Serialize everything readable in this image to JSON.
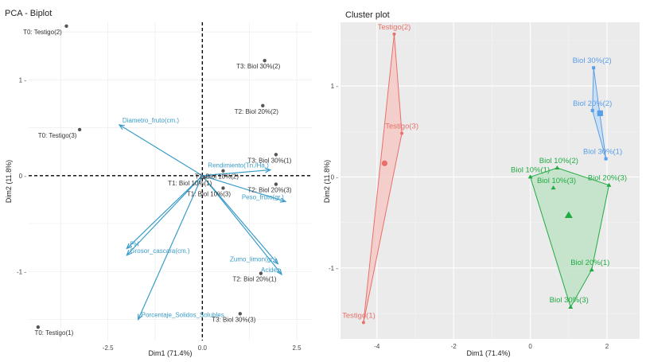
{
  "chart_data": [
    {
      "type": "scatter",
      "title": "PCA - Biplot",
      "xlabel": "Dim1 (71.4%)",
      "ylabel": "Dim2 (11.8%)",
      "xlim": [
        -4.6,
        2.9
      ],
      "ylim": [
        -1.72,
        1.6
      ],
      "x_ticks": [
        -2.5,
        0.0,
        2.5
      ],
      "x_tick_labels": [
        "-2.5",
        "0.0",
        "2.5"
      ],
      "y_ticks": [
        1,
        0,
        -1
      ],
      "y_tick_labels": [
        "1 -",
        "0 -",
        "-1 -"
      ],
      "grid": true,
      "points": [
        {
          "label": "T0: Testigo(2)",
          "x": -3.6,
          "y": 1.56
        },
        {
          "label": "T3: Biol 30%(2)",
          "x": 1.65,
          "y": 1.2
        },
        {
          "label": "T2: Biol 20%(2)",
          "x": 1.6,
          "y": 0.73
        },
        {
          "label": "T0: Testigo(3)",
          "x": -3.25,
          "y": 0.48
        },
        {
          "label": "T3: Biol 30%(1)",
          "x": 1.95,
          "y": 0.22
        },
        {
          "label": "T1: Biol 10%(2)",
          "x": 0.55,
          "y": 0.05
        },
        {
          "label": "T1: Biol 10%(1)",
          "x": 0.05,
          "y": -0.02
        },
        {
          "label": "T1: Biol 10%(3)",
          "x": 0.55,
          "y": -0.13
        },
        {
          "label": "T2: Biol 20%(3)",
          "x": 1.95,
          "y": -0.09
        },
        {
          "label": "T2: Biol 20%(1)",
          "x": 1.55,
          "y": -1.02
        },
        {
          "label": "T3: Biol 30%(3)",
          "x": 1.0,
          "y": -1.44
        },
        {
          "label": "T0: Testigo(1)",
          "x": -4.35,
          "y": -1.58
        }
      ],
      "variables": [
        {
          "label": "Diametro_fruto(cm.)",
          "x": -2.2,
          "y": 0.53
        },
        {
          "label": "Rendimiento(Tn./Ha.)",
          "x": 1.8,
          "y": 0.06
        },
        {
          "label": "Peso_fruto(gr.)",
          "x": 2.2,
          "y": -0.27
        },
        {
          "label": "PH",
          "x": -2.0,
          "y": -0.76
        },
        {
          "label": "Grosor_cascara(cm.)",
          "x": -2.0,
          "y": -0.83
        },
        {
          "label": "Zumo_limon(gr.)",
          "x": 2.0,
          "y": -0.92
        },
        {
          "label": "Acidez",
          "x": 2.1,
          "y": -1.03
        },
        {
          "label": "Porcentaje_Solidos_Solubles",
          "x": -1.7,
          "y": -1.5
        }
      ]
    },
    {
      "type": "scatter",
      "title": "Cluster plot",
      "xlabel": "Dim1 (71.4%)",
      "ylabel": "Dim2 (11.8%)",
      "xlim": [
        -4.95,
        2.85
      ],
      "ylim": [
        -1.78,
        1.7
      ],
      "x_ticks": [
        -4,
        -2,
        0,
        2
      ],
      "x_tick_labels": [
        "-4",
        "-2",
        "0",
        "2"
      ],
      "y_ticks": [
        1,
        0,
        -1
      ],
      "y_tick_labels": [
        "1 -",
        "0 -",
        "-1 -"
      ],
      "grid": true,
      "clusters": [
        {
          "name": "Testigo",
          "color": "#e8706a",
          "fill": "#f4c9c5",
          "center": {
            "x": -3.8,
            "y": 0.15
          },
          "points": [
            {
              "label": "Testigo(2)",
              "x": -3.55,
              "y": 1.57
            },
            {
              "label": "Testigo(3)",
              "x": -3.35,
              "y": 0.48
            },
            {
              "label": "Testigo(1)",
              "x": -4.35,
              "y": -1.6
            }
          ]
        },
        {
          "name": "Biol 30%",
          "color": "#5a9ee8",
          "fill": "#c5ddf5",
          "center": {
            "x": 1.82,
            "y": 0.7
          },
          "points": [
            {
              "label": "Biol 30%(2)",
              "x": 1.65,
              "y": 1.2
            },
            {
              "label": "Biol 20%(2)",
              "x": 1.62,
              "y": 0.73
            },
            {
              "label": "Biol 30%(1)",
              "x": 1.97,
              "y": 0.2
            }
          ]
        },
        {
          "name": "Biol 10%",
          "color": "#22aa44",
          "fill": "#bfe3c6",
          "center": {
            "x": 1.0,
            "y": -0.42
          },
          "points": [
            {
              "label": "Biol 10%(1)",
              "x": 0.0,
              "y": 0.0
            },
            {
              "label": "Biol 10%(2)",
              "x": 0.7,
              "y": 0.1
            },
            {
              "label": "Biol 10%(3)",
              "x": 0.6,
              "y": -0.12
            },
            {
              "label": "Biol 20%(3)",
              "x": 2.05,
              "y": -0.09
            },
            {
              "label": "Biol 20%(1)",
              "x": 1.6,
              "y": -1.02
            },
            {
              "label": "Biol 30%(3)",
              "x": 1.05,
              "y": -1.43
            }
          ]
        }
      ]
    }
  ]
}
